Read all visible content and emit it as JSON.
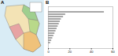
{
  "panel_labels": [
    "A",
    "B"
  ],
  "chart_data": {
    "type": "bar",
    "orientation": "horizontal",
    "categories": [
      null,
      null,
      null,
      null,
      null,
      null,
      null,
      null,
      null,
      null,
      null,
      null,
      null,
      null
    ],
    "values": [
      52,
      16,
      14,
      12,
      11,
      10,
      9,
      8,
      7,
      6,
      5,
      4,
      3,
      2
    ],
    "color": "#a6a6a6",
    "xlim": [
      0,
      60
    ],
    "xticks": [
      0,
      20,
      40,
      60
    ],
    "grid": false
  }
}
